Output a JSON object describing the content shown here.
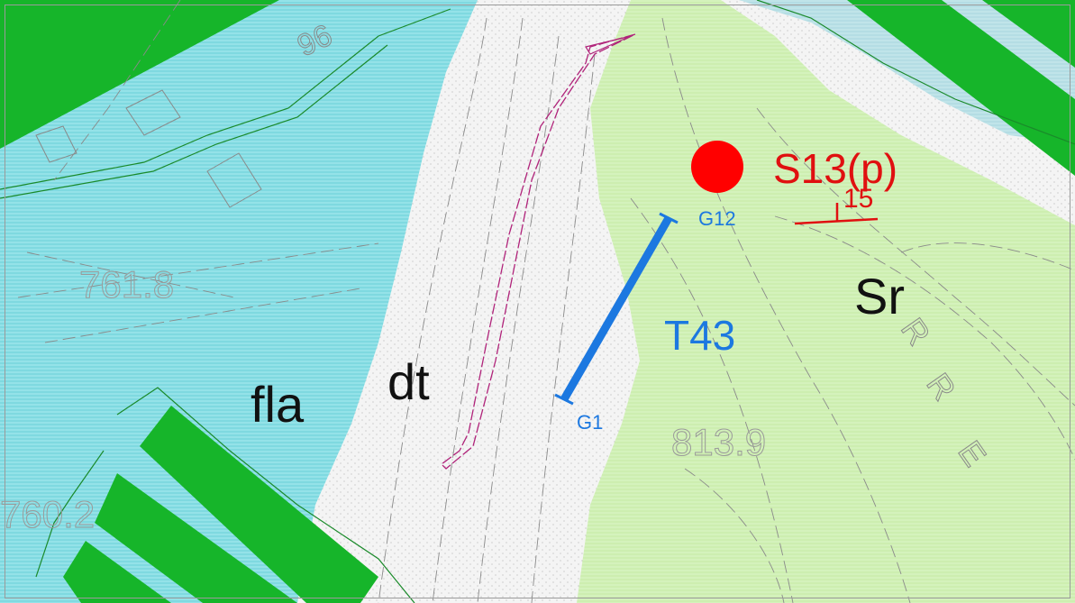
{
  "map": {
    "colors": {
      "fla": "#7fd9e0",
      "dt": "#f4f4f4",
      "sr": "#cdeeb0",
      "terrace_band": "#16b52a",
      "sample_point": "#ff0000",
      "section_line": "#1c78e0",
      "trail": "#b0237a",
      "contour": "#8a8a8a"
    },
    "units": {
      "fla": "fla",
      "dt": "dt",
      "sr": "Sr"
    },
    "elevation_labels": {
      "e1": "761.8",
      "e2": "813.9",
      "e3": "760.2",
      "e4": "96"
    },
    "sample": {
      "label": "S13(p)",
      "dip": "15"
    },
    "section": {
      "label": "T43",
      "start": "G1",
      "end": "G12"
    },
    "road_letters": [
      "R",
      "R",
      "E"
    ]
  }
}
